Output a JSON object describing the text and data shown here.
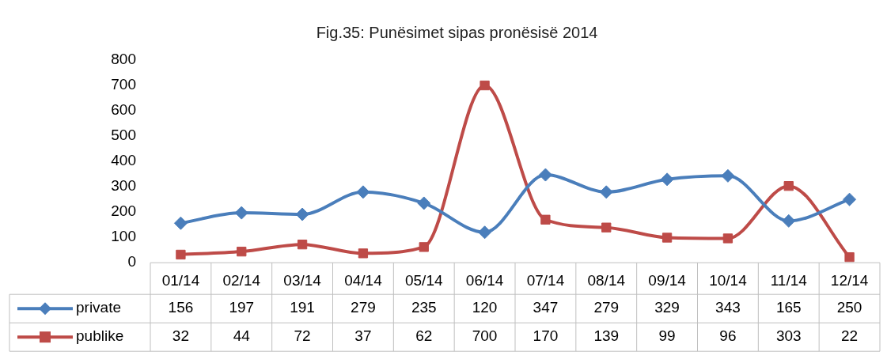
{
  "chart_data": {
    "type": "line",
    "title": "Fig.35: Punësimet sipas pronësisë 2014",
    "categories": [
      "01/14",
      "02/14",
      "03/14",
      "04/14",
      "05/14",
      "06/14",
      "07/14",
      "08/14",
      "09/14",
      "10/14",
      "11/14",
      "12/14"
    ],
    "series": [
      {
        "name": "private",
        "color": "#4a7ebb",
        "marker": "diamond",
        "values": [
          156,
          197,
          191,
          279,
          235,
          120,
          347,
          279,
          329,
          343,
          165,
          250
        ]
      },
      {
        "name": "publike",
        "color": "#be4b48",
        "marker": "square",
        "values": [
          32,
          44,
          72,
          37,
          62,
          700,
          170,
          139,
          99,
          96,
          303,
          22
        ]
      }
    ],
    "ylim": [
      0,
      800
    ],
    "yticks": [
      0,
      100,
      200,
      300,
      400,
      500,
      600,
      700,
      800
    ],
    "grid": false,
    "legend": "bottom left",
    "data_labels": true
  }
}
